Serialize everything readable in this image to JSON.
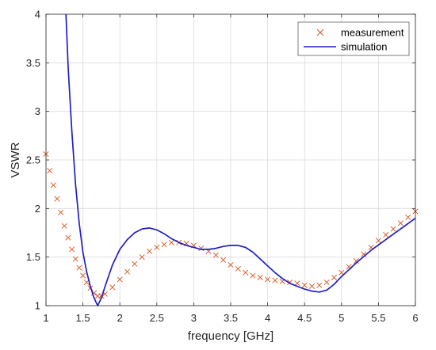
{
  "chart_data": {
    "type": "line",
    "title": "",
    "xlabel": "frequency [GHz]",
    "ylabel": "VSWR",
    "xlim": [
      1,
      6
    ],
    "ylim": [
      1,
      4
    ],
    "xticks": [
      1,
      1.5,
      2,
      2.5,
      3,
      3.5,
      4,
      4.5,
      5,
      5.5,
      6
    ],
    "xtick_labels": [
      "1",
      "1.5",
      "2",
      "2.5",
      "3",
      "3.5",
      "4",
      "4.5",
      "5",
      "5.5",
      "6"
    ],
    "yticks": [
      1,
      1.5,
      2,
      2.5,
      3,
      3.5,
      4
    ],
    "ytick_labels": [
      "1",
      "1.5",
      "2",
      "2.5",
      "3",
      "3.5",
      "4"
    ],
    "grid": true,
    "legend_position": "top-right",
    "series": [
      {
        "name": "measurement",
        "style": "markers",
        "marker": "x",
        "color": "#d95319",
        "x": [
          1.0,
          1.05,
          1.1,
          1.15,
          1.2,
          1.25,
          1.3,
          1.35,
          1.4,
          1.45,
          1.5,
          1.55,
          1.6,
          1.65,
          1.7,
          1.75,
          1.8,
          1.9,
          2.0,
          2.1,
          2.2,
          2.3,
          2.4,
          2.5,
          2.6,
          2.7,
          2.8,
          2.9,
          3.0,
          3.1,
          3.2,
          3.3,
          3.4,
          3.5,
          3.6,
          3.7,
          3.8,
          3.9,
          4.0,
          4.1,
          4.2,
          4.3,
          4.4,
          4.5,
          4.6,
          4.7,
          4.8,
          4.9,
          5.0,
          5.1,
          5.2,
          5.3,
          5.4,
          5.5,
          5.6,
          5.7,
          5.8,
          5.9,
          6.0
        ],
        "y": [
          2.56,
          2.39,
          2.24,
          2.1,
          1.96,
          1.82,
          1.7,
          1.58,
          1.48,
          1.39,
          1.31,
          1.24,
          1.18,
          1.13,
          1.1,
          1.1,
          1.12,
          1.19,
          1.27,
          1.35,
          1.43,
          1.5,
          1.56,
          1.6,
          1.63,
          1.65,
          1.65,
          1.64,
          1.62,
          1.59,
          1.56,
          1.52,
          1.47,
          1.42,
          1.38,
          1.34,
          1.31,
          1.29,
          1.27,
          1.26,
          1.25,
          1.24,
          1.23,
          1.21,
          1.2,
          1.21,
          1.24,
          1.29,
          1.34,
          1.4,
          1.46,
          1.53,
          1.6,
          1.67,
          1.73,
          1.79,
          1.85,
          1.91,
          1.97
        ]
      },
      {
        "name": "simulation",
        "style": "line",
        "color": "#1f1fc8",
        "x": [
          1.27,
          1.3,
          1.35,
          1.4,
          1.45,
          1.5,
          1.55,
          1.6,
          1.65,
          1.7,
          1.75,
          1.8,
          1.9,
          2.0,
          2.1,
          2.2,
          2.3,
          2.4,
          2.5,
          2.6,
          2.7,
          2.8,
          2.9,
          3.0,
          3.1,
          3.2,
          3.3,
          3.4,
          3.5,
          3.6,
          3.7,
          3.8,
          3.9,
          4.0,
          4.1,
          4.2,
          4.3,
          4.4,
          4.5,
          4.6,
          4.7,
          4.8,
          4.9,
          5.0,
          5.2,
          5.4,
          5.6,
          5.8,
          6.0
        ],
        "y": [
          4.0,
          3.45,
          2.8,
          2.25,
          1.85,
          1.55,
          1.35,
          1.2,
          1.08,
          1.0,
          1.08,
          1.2,
          1.42,
          1.58,
          1.68,
          1.75,
          1.79,
          1.8,
          1.78,
          1.74,
          1.69,
          1.65,
          1.62,
          1.6,
          1.58,
          1.58,
          1.59,
          1.61,
          1.62,
          1.62,
          1.6,
          1.55,
          1.48,
          1.41,
          1.34,
          1.28,
          1.23,
          1.2,
          1.17,
          1.15,
          1.14,
          1.16,
          1.22,
          1.3,
          1.44,
          1.57,
          1.68,
          1.79,
          1.9
        ]
      }
    ]
  }
}
